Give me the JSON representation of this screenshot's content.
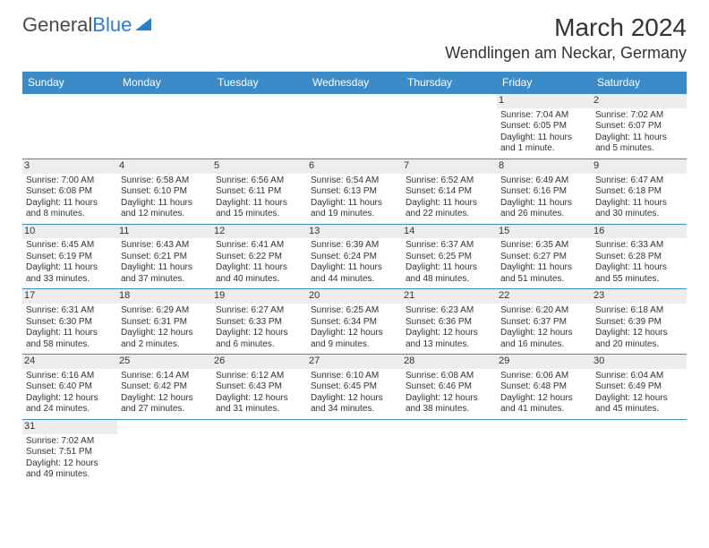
{
  "logo": {
    "text1": "General",
    "text2": "Blue"
  },
  "title": "March 2024",
  "location": "Wendlingen am Neckar, Germany",
  "day_names": [
    "Sunday",
    "Monday",
    "Tuesday",
    "Wednesday",
    "Thursday",
    "Friday",
    "Saturday"
  ],
  "colors": {
    "header_bg": "#3b8bc9",
    "header_text": "#ffffff",
    "daynum_bg": "#ededed",
    "row_border": "#3b8bc9",
    "logo_blue": "#2a7fc9"
  },
  "weeks": [
    [
      null,
      null,
      null,
      null,
      null,
      {
        "n": "1",
        "sr": "Sunrise: 7:04 AM",
        "ss": "Sunset: 6:05 PM",
        "dl1": "Daylight: 11 hours",
        "dl2": "and 1 minute."
      },
      {
        "n": "2",
        "sr": "Sunrise: 7:02 AM",
        "ss": "Sunset: 6:07 PM",
        "dl1": "Daylight: 11 hours",
        "dl2": "and 5 minutes."
      }
    ],
    [
      {
        "n": "3",
        "sr": "Sunrise: 7:00 AM",
        "ss": "Sunset: 6:08 PM",
        "dl1": "Daylight: 11 hours",
        "dl2": "and 8 minutes."
      },
      {
        "n": "4",
        "sr": "Sunrise: 6:58 AM",
        "ss": "Sunset: 6:10 PM",
        "dl1": "Daylight: 11 hours",
        "dl2": "and 12 minutes."
      },
      {
        "n": "5",
        "sr": "Sunrise: 6:56 AM",
        "ss": "Sunset: 6:11 PM",
        "dl1": "Daylight: 11 hours",
        "dl2": "and 15 minutes."
      },
      {
        "n": "6",
        "sr": "Sunrise: 6:54 AM",
        "ss": "Sunset: 6:13 PM",
        "dl1": "Daylight: 11 hours",
        "dl2": "and 19 minutes."
      },
      {
        "n": "7",
        "sr": "Sunrise: 6:52 AM",
        "ss": "Sunset: 6:14 PM",
        "dl1": "Daylight: 11 hours",
        "dl2": "and 22 minutes."
      },
      {
        "n": "8",
        "sr": "Sunrise: 6:49 AM",
        "ss": "Sunset: 6:16 PM",
        "dl1": "Daylight: 11 hours",
        "dl2": "and 26 minutes."
      },
      {
        "n": "9",
        "sr": "Sunrise: 6:47 AM",
        "ss": "Sunset: 6:18 PM",
        "dl1": "Daylight: 11 hours",
        "dl2": "and 30 minutes."
      }
    ],
    [
      {
        "n": "10",
        "sr": "Sunrise: 6:45 AM",
        "ss": "Sunset: 6:19 PM",
        "dl1": "Daylight: 11 hours",
        "dl2": "and 33 minutes."
      },
      {
        "n": "11",
        "sr": "Sunrise: 6:43 AM",
        "ss": "Sunset: 6:21 PM",
        "dl1": "Daylight: 11 hours",
        "dl2": "and 37 minutes."
      },
      {
        "n": "12",
        "sr": "Sunrise: 6:41 AM",
        "ss": "Sunset: 6:22 PM",
        "dl1": "Daylight: 11 hours",
        "dl2": "and 40 minutes."
      },
      {
        "n": "13",
        "sr": "Sunrise: 6:39 AM",
        "ss": "Sunset: 6:24 PM",
        "dl1": "Daylight: 11 hours",
        "dl2": "and 44 minutes."
      },
      {
        "n": "14",
        "sr": "Sunrise: 6:37 AM",
        "ss": "Sunset: 6:25 PM",
        "dl1": "Daylight: 11 hours",
        "dl2": "and 48 minutes."
      },
      {
        "n": "15",
        "sr": "Sunrise: 6:35 AM",
        "ss": "Sunset: 6:27 PM",
        "dl1": "Daylight: 11 hours",
        "dl2": "and 51 minutes."
      },
      {
        "n": "16",
        "sr": "Sunrise: 6:33 AM",
        "ss": "Sunset: 6:28 PM",
        "dl1": "Daylight: 11 hours",
        "dl2": "and 55 minutes."
      }
    ],
    [
      {
        "n": "17",
        "sr": "Sunrise: 6:31 AM",
        "ss": "Sunset: 6:30 PM",
        "dl1": "Daylight: 11 hours",
        "dl2": "and 58 minutes."
      },
      {
        "n": "18",
        "sr": "Sunrise: 6:29 AM",
        "ss": "Sunset: 6:31 PM",
        "dl1": "Daylight: 12 hours",
        "dl2": "and 2 minutes."
      },
      {
        "n": "19",
        "sr": "Sunrise: 6:27 AM",
        "ss": "Sunset: 6:33 PM",
        "dl1": "Daylight: 12 hours",
        "dl2": "and 6 minutes."
      },
      {
        "n": "20",
        "sr": "Sunrise: 6:25 AM",
        "ss": "Sunset: 6:34 PM",
        "dl1": "Daylight: 12 hours",
        "dl2": "and 9 minutes."
      },
      {
        "n": "21",
        "sr": "Sunrise: 6:23 AM",
        "ss": "Sunset: 6:36 PM",
        "dl1": "Daylight: 12 hours",
        "dl2": "and 13 minutes."
      },
      {
        "n": "22",
        "sr": "Sunrise: 6:20 AM",
        "ss": "Sunset: 6:37 PM",
        "dl1": "Daylight: 12 hours",
        "dl2": "and 16 minutes."
      },
      {
        "n": "23",
        "sr": "Sunrise: 6:18 AM",
        "ss": "Sunset: 6:39 PM",
        "dl1": "Daylight: 12 hours",
        "dl2": "and 20 minutes."
      }
    ],
    [
      {
        "n": "24",
        "sr": "Sunrise: 6:16 AM",
        "ss": "Sunset: 6:40 PM",
        "dl1": "Daylight: 12 hours",
        "dl2": "and 24 minutes."
      },
      {
        "n": "25",
        "sr": "Sunrise: 6:14 AM",
        "ss": "Sunset: 6:42 PM",
        "dl1": "Daylight: 12 hours",
        "dl2": "and 27 minutes."
      },
      {
        "n": "26",
        "sr": "Sunrise: 6:12 AM",
        "ss": "Sunset: 6:43 PM",
        "dl1": "Daylight: 12 hours",
        "dl2": "and 31 minutes."
      },
      {
        "n": "27",
        "sr": "Sunrise: 6:10 AM",
        "ss": "Sunset: 6:45 PM",
        "dl1": "Daylight: 12 hours",
        "dl2": "and 34 minutes."
      },
      {
        "n": "28",
        "sr": "Sunrise: 6:08 AM",
        "ss": "Sunset: 6:46 PM",
        "dl1": "Daylight: 12 hours",
        "dl2": "and 38 minutes."
      },
      {
        "n": "29",
        "sr": "Sunrise: 6:06 AM",
        "ss": "Sunset: 6:48 PM",
        "dl1": "Daylight: 12 hours",
        "dl2": "and 41 minutes."
      },
      {
        "n": "30",
        "sr": "Sunrise: 6:04 AM",
        "ss": "Sunset: 6:49 PM",
        "dl1": "Daylight: 12 hours",
        "dl2": "and 45 minutes."
      }
    ],
    [
      {
        "n": "31",
        "sr": "Sunrise: 7:02 AM",
        "ss": "Sunset: 7:51 PM",
        "dl1": "Daylight: 12 hours",
        "dl2": "and 49 minutes."
      },
      null,
      null,
      null,
      null,
      null,
      null
    ]
  ]
}
